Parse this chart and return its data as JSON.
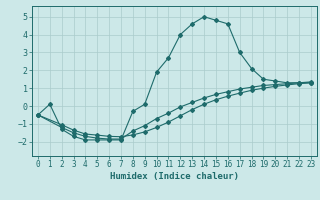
{
  "xlabel": "Humidex (Indice chaleur)",
  "background_color": "#cce8e8",
  "grid_color": "#aacccc",
  "line_color": "#1e6b6b",
  "xlim": [
    -0.5,
    23.5
  ],
  "ylim": [
    -2.8,
    5.6
  ],
  "xticks": [
    0,
    1,
    2,
    3,
    4,
    5,
    6,
    7,
    8,
    9,
    10,
    11,
    12,
    13,
    14,
    15,
    16,
    17,
    18,
    19,
    20,
    21,
    22,
    23
  ],
  "yticks": [
    -2,
    -1,
    0,
    1,
    2,
    3,
    4,
    5
  ],
  "line1_x": [
    0,
    1,
    2,
    3,
    4,
    5,
    6,
    7,
    8,
    9,
    10,
    11,
    12,
    13,
    14,
    15,
    16,
    17,
    18,
    19,
    20,
    21,
    22,
    23
  ],
  "line1_y": [
    -0.5,
    0.1,
    -1.3,
    -1.7,
    -1.9,
    -1.9,
    -1.9,
    -1.9,
    -0.3,
    0.1,
    1.9,
    2.7,
    4.0,
    4.6,
    5.0,
    4.8,
    4.6,
    3.0,
    2.1,
    1.5,
    1.4,
    1.3,
    1.3,
    1.3
  ],
  "line2_x": [
    0,
    2,
    3,
    4,
    5,
    6,
    7,
    8,
    9,
    10,
    11,
    12,
    13,
    14,
    15,
    16,
    17,
    18,
    19,
    20,
    21,
    22,
    23
  ],
  "line2_y": [
    -0.5,
    -1.2,
    -1.5,
    -1.7,
    -1.8,
    -1.85,
    -1.85,
    -1.4,
    -1.1,
    -0.7,
    -0.4,
    -0.05,
    0.2,
    0.45,
    0.65,
    0.8,
    0.95,
    1.05,
    1.15,
    1.2,
    1.25,
    1.3,
    1.35
  ],
  "line3_x": [
    0,
    2,
    3,
    4,
    5,
    6,
    7,
    8,
    9,
    10,
    11,
    12,
    13,
    14,
    15,
    16,
    17,
    18,
    19,
    20,
    21,
    22,
    23
  ],
  "line3_y": [
    -0.5,
    -1.05,
    -1.35,
    -1.57,
    -1.63,
    -1.7,
    -1.72,
    -1.62,
    -1.45,
    -1.2,
    -0.9,
    -0.55,
    -0.2,
    0.1,
    0.35,
    0.55,
    0.72,
    0.88,
    1.0,
    1.1,
    1.18,
    1.25,
    1.3
  ]
}
